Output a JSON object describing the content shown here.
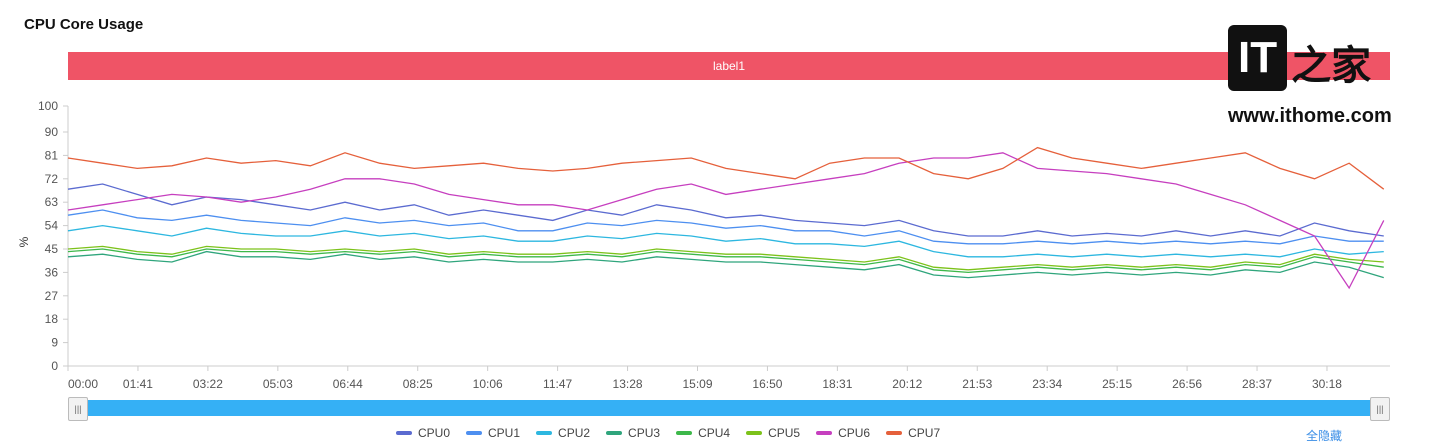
{
  "title": "CPU Core Usage",
  "label_bar": "label1",
  "hide_all": "全隐藏",
  "watermark": {
    "logo": "IT",
    "logo_cn": "之家",
    "url": "www.ithome.com"
  },
  "chart_data": {
    "type": "line",
    "title": "CPU Core Usage",
    "xlabel": "",
    "ylabel": "%",
    "ylim": [
      0,
      100
    ],
    "yticks": [
      "0",
      "9",
      "18",
      "27",
      "36",
      "45",
      "54",
      "63",
      "72",
      "81",
      "90",
      "100"
    ],
    "ytick_values": [
      0,
      9,
      18,
      27,
      36,
      45,
      54,
      63,
      72,
      81,
      90,
      100
    ],
    "xticks": [
      "00:00",
      "01:41",
      "03:22",
      "05:03",
      "06:44",
      "08:25",
      "10:06",
      "11:47",
      "13:28",
      "15:09",
      "16:50",
      "18:31",
      "20:12",
      "21:53",
      "23:34",
      "25:15",
      "26:56",
      "28:37",
      "30:18"
    ],
    "xlim_seconds": [
      0,
      1909
    ],
    "x_step_seconds": 50,
    "series": [
      {
        "name": "CPU0",
        "color": "#5b6bd0",
        "values": [
          68,
          70,
          66,
          62,
          65,
          64,
          62,
          60,
          63,
          60,
          62,
          58,
          60,
          58,
          56,
          60,
          58,
          62,
          60,
          57,
          58,
          56,
          55,
          54,
          56,
          52,
          50,
          50,
          52,
          50,
          51,
          50,
          52,
          50,
          52,
          50,
          55,
          52,
          50
        ]
      },
      {
        "name": "CPU1",
        "color": "#4d8ff0",
        "values": [
          58,
          60,
          57,
          56,
          58,
          56,
          55,
          54,
          57,
          55,
          56,
          54,
          55,
          52,
          52,
          55,
          54,
          56,
          55,
          53,
          54,
          52,
          52,
          50,
          52,
          48,
          47,
          47,
          48,
          47,
          48,
          47,
          48,
          47,
          48,
          47,
          50,
          48,
          48
        ]
      },
      {
        "name": "CPU2",
        "color": "#2db7e0",
        "values": [
          52,
          54,
          52,
          50,
          53,
          51,
          50,
          50,
          52,
          50,
          51,
          49,
          50,
          48,
          48,
          50,
          49,
          51,
          50,
          48,
          49,
          47,
          47,
          46,
          48,
          44,
          42,
          42,
          43,
          42,
          43,
          42,
          43,
          42,
          43,
          42,
          45,
          43,
          44
        ]
      },
      {
        "name": "CPU3",
        "color": "#2fa57c",
        "values": [
          42,
          43,
          41,
          40,
          44,
          42,
          42,
          41,
          43,
          41,
          42,
          40,
          41,
          40,
          40,
          41,
          40,
          42,
          41,
          40,
          40,
          39,
          38,
          37,
          39,
          35,
          34,
          35,
          36,
          35,
          36,
          35,
          36,
          35,
          37,
          36,
          40,
          38,
          34
        ]
      },
      {
        "name": "CPU4",
        "color": "#3db84a",
        "values": [
          44,
          45,
          43,
          42,
          45,
          44,
          44,
          43,
          44,
          43,
          44,
          42,
          43,
          42,
          42,
          43,
          42,
          44,
          43,
          42,
          42,
          41,
          40,
          39,
          41,
          37,
          36,
          37,
          38,
          37,
          38,
          37,
          38,
          37,
          39,
          38,
          42,
          40,
          38
        ]
      },
      {
        "name": "CPU5",
        "color": "#7cc21a",
        "values": [
          45,
          46,
          44,
          43,
          46,
          45,
          45,
          44,
          45,
          44,
          45,
          43,
          44,
          43,
          43,
          44,
          43,
          45,
          44,
          43,
          43,
          42,
          41,
          40,
          42,
          38,
          37,
          38,
          39,
          38,
          39,
          38,
          39,
          38,
          40,
          39,
          43,
          41,
          40
        ]
      },
      {
        "name": "CPU6",
        "color": "#c63fbf",
        "values": [
          60,
          62,
          64,
          66,
          65,
          63,
          65,
          68,
          72,
          72,
          70,
          66,
          64,
          62,
          62,
          60,
          64,
          68,
          70,
          66,
          68,
          70,
          72,
          74,
          78,
          80,
          80,
          82,
          76,
          75,
          74,
          72,
          70,
          66,
          62,
          56,
          50,
          30,
          56
        ]
      },
      {
        "name": "CPU7",
        "color": "#e5603b",
        "values": [
          80,
          78,
          76,
          77,
          80,
          78,
          79,
          77,
          82,
          78,
          76,
          77,
          78,
          76,
          75,
          76,
          78,
          79,
          80,
          76,
          74,
          72,
          78,
          80,
          80,
          74,
          72,
          76,
          84,
          80,
          78,
          76,
          78,
          80,
          82,
          76,
          72,
          78,
          68
        ]
      }
    ]
  }
}
